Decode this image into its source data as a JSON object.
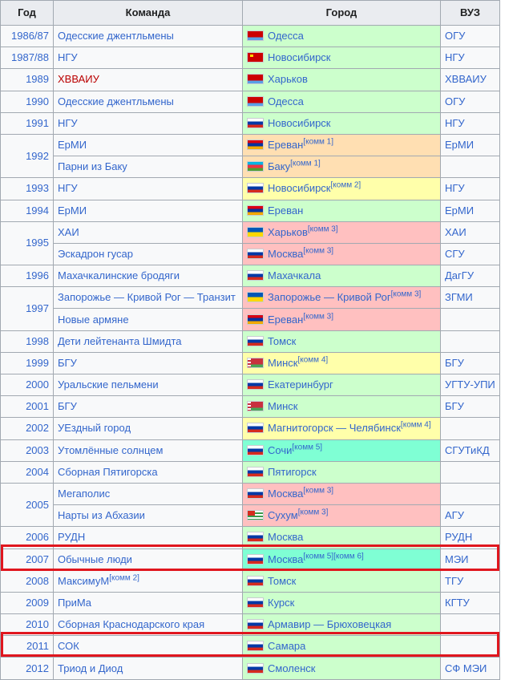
{
  "headers": {
    "year": "Год",
    "team": "Команда",
    "city": "Город",
    "vuz": "ВУЗ"
  },
  "rows": [
    {
      "year": "1986/87",
      "team": "Одесские джентльмены",
      "city": "Одесса",
      "vuz": "ОГУ"
    },
    {
      "year": "1987/88",
      "team": "НГУ",
      "city": "Новосибирск",
      "vuz": "НГУ"
    },
    {
      "year": "1989",
      "team": "ХВВАИУ",
      "city": "Харьков",
      "vuz": "ХВВАИУ"
    },
    {
      "year": "1990",
      "team": "Одесские джентльмены",
      "city": "Одесса",
      "vuz": "ОГУ"
    },
    {
      "year": "1991",
      "team": "НГУ",
      "city": "Новосибирск",
      "vuz": "НГУ"
    },
    {
      "year": "1992",
      "team": "ЕрМИ",
      "city": "Ереван",
      "note": "[комм 1]",
      "vuz": "ЕрМИ"
    },
    {
      "team": "Парни из Баку",
      "city": "Баку",
      "note": "[комм 1]",
      "vuz": ""
    },
    {
      "year": "1993",
      "team": "НГУ",
      "city": "Новосибирск",
      "note": "[комм 2]",
      "vuz": "НГУ"
    },
    {
      "year": "1994",
      "team": "ЕрМИ",
      "city": "Ереван",
      "vuz": "ЕрМИ"
    },
    {
      "year": "1995",
      "team": "ХАИ",
      "city": "Харьков",
      "note": "[комм 3]",
      "vuz": "ХАИ"
    },
    {
      "team": "Эскадрон гусар",
      "city": "Москва",
      "note": "[комм 3]",
      "vuz": "СГУ"
    },
    {
      "year": "1996",
      "team": "Махачкалинские бродяги",
      "city": "Махачкала",
      "vuz": "ДагГУ"
    },
    {
      "year": "1997",
      "team": "Запорожье — Кривой Рог — Транзит",
      "city": "Запорожье — Кривой Рог",
      "note": "[комм 3]",
      "vuz": "ЗГМИ"
    },
    {
      "team": "Новые армяне",
      "city": "Ереван",
      "note": "[комм 3]",
      "vuz": ""
    },
    {
      "year": "1998",
      "team": "Дети лейтенанта Шмидта",
      "city": "Томск",
      "vuz": ""
    },
    {
      "year": "1999",
      "team": "БГУ",
      "city": "Минск",
      "note": "[комм 4]",
      "vuz": "БГУ"
    },
    {
      "year": "2000",
      "team": "Уральские пельмени",
      "city": "Екатеринбург",
      "vuz": "УГТУ-УПИ"
    },
    {
      "year": "2001",
      "team": "БГУ",
      "city": "Минск",
      "vuz": "БГУ"
    },
    {
      "year": "2002",
      "team": "УЕздный город",
      "city": "Магнитогорск — Челябинск",
      "note": "[комм 4]",
      "vuz": ""
    },
    {
      "year": "2003",
      "team": "Утомлённые солнцем",
      "city": "Сочи",
      "note": "[комм 5]",
      "vuz": "СГУТиКД"
    },
    {
      "year": "2004",
      "team": "Сборная Пятигорска",
      "city": "Пятигорск",
      "vuz": ""
    },
    {
      "year": "2005",
      "team": "Мегаполис",
      "city": "Москва",
      "note": "[комм 3]",
      "vuz": ""
    },
    {
      "team": "Нарты из Абхазии",
      "city": "Сухум",
      "note": "[комм 3]",
      "vuz": "АГУ"
    },
    {
      "year": "2006",
      "team": "РУДН",
      "city": "Москва",
      "vuz": "РУДН"
    },
    {
      "year": "2007",
      "team": "Обычные люди",
      "city": "Москва",
      "note": "[комм 5][комм 6]",
      "vuz": "МЭИ"
    },
    {
      "year": "2008",
      "team": "МаксимуМ",
      "team_note": "[комм 2]",
      "city": "Томск",
      "vuz": "ТГУ"
    },
    {
      "year": "2009",
      "team": "ПриМа",
      "city": "Курск",
      "vuz": "КГТУ"
    },
    {
      "year": "2010",
      "team": "Сборная Краснодарского края",
      "city": "Армавир — Брюховецкая",
      "vuz": ""
    },
    {
      "year": "2011",
      "team": "СОК",
      "city": "Самара",
      "vuz": ""
    },
    {
      "year": "2012",
      "team": "Триод и Диод",
      "city": "Смоленск",
      "vuz": "СФ МЭИ"
    }
  ]
}
